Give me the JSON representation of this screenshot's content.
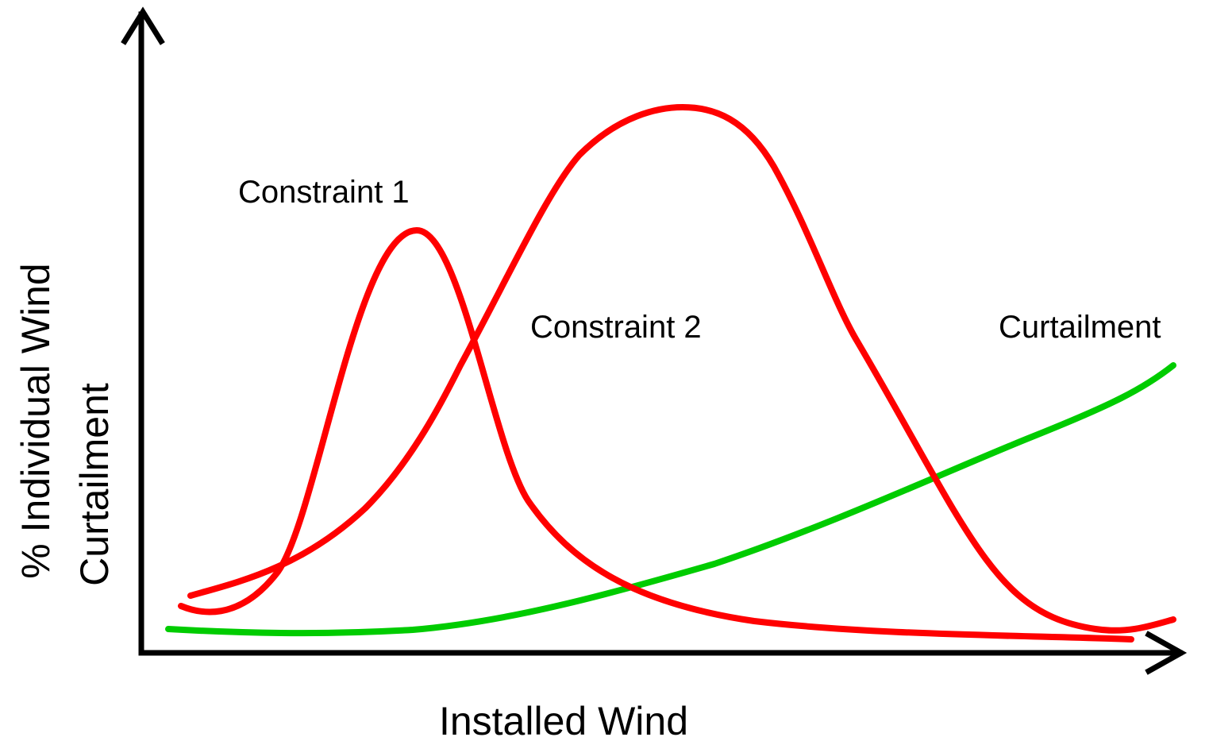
{
  "axes": {
    "x_label": "Installed Wind",
    "y_label_lines": [
      "% Individual Wind",
      "Curtailment"
    ]
  },
  "curves": [
    {
      "label": "Constraint 1"
    },
    {
      "label": "Constraint 2"
    },
    {
      "label": "Curtailment"
    }
  ]
}
